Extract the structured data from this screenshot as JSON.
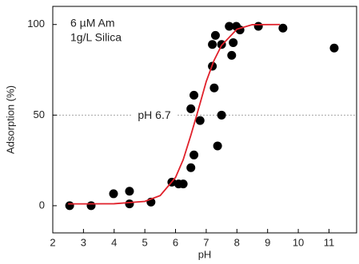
{
  "chart_data": {
    "type": "scatter",
    "xlabel": "pH",
    "ylabel": "Adsorption (%)",
    "annotations": [
      "6 µM Am",
      "1g/L Silica"
    ],
    "reference_line": {
      "value": 50,
      "label": "pH 6.7",
      "color": "#999999"
    },
    "xlim": [
      2,
      11.9
    ],
    "ylim": [
      -15,
      110
    ],
    "xticks": [
      2,
      3,
      4,
      5,
      6,
      7,
      8,
      9,
      10,
      11
    ],
    "yticks": [
      0,
      50,
      100
    ],
    "series": [
      {
        "type": "scatter",
        "color": "#000000",
        "x": [
          2.55,
          3.25,
          3.98,
          4.5,
          4.5,
          5.2,
          5.88,
          6.1,
          6.25,
          6.5,
          6.6,
          6.5,
          6.6,
          6.8,
          7.2,
          7.26,
          7.3,
          7.37,
          7.5,
          7.2,
          7.5,
          7.75,
          7.83,
          7.88,
          7.98,
          8.1,
          8.7,
          9.5,
          11.17
        ],
        "values": [
          0,
          0,
          6.6,
          8,
          1,
          2,
          13,
          12,
          12,
          21,
          28,
          53.5,
          61,
          47,
          77,
          65,
          94,
          33,
          50,
          89,
          89,
          99,
          83,
          90,
          99,
          97,
          99,
          98,
          87
        ]
      },
      {
        "type": "line",
        "color": "#e0202a",
        "x": [
          2.5,
          3,
          4,
          5,
          5.5,
          6,
          6.25,
          6.5,
          6.7,
          7,
          7.25,
          7.5,
          8,
          8.5,
          9.4
        ],
        "values": [
          1,
          1,
          1.1,
          2.4,
          5.6,
          15.6,
          25.4,
          38.9,
          50.5,
          68.5,
          80,
          88.5,
          97.4,
          99.9,
          100
        ]
      }
    ]
  }
}
